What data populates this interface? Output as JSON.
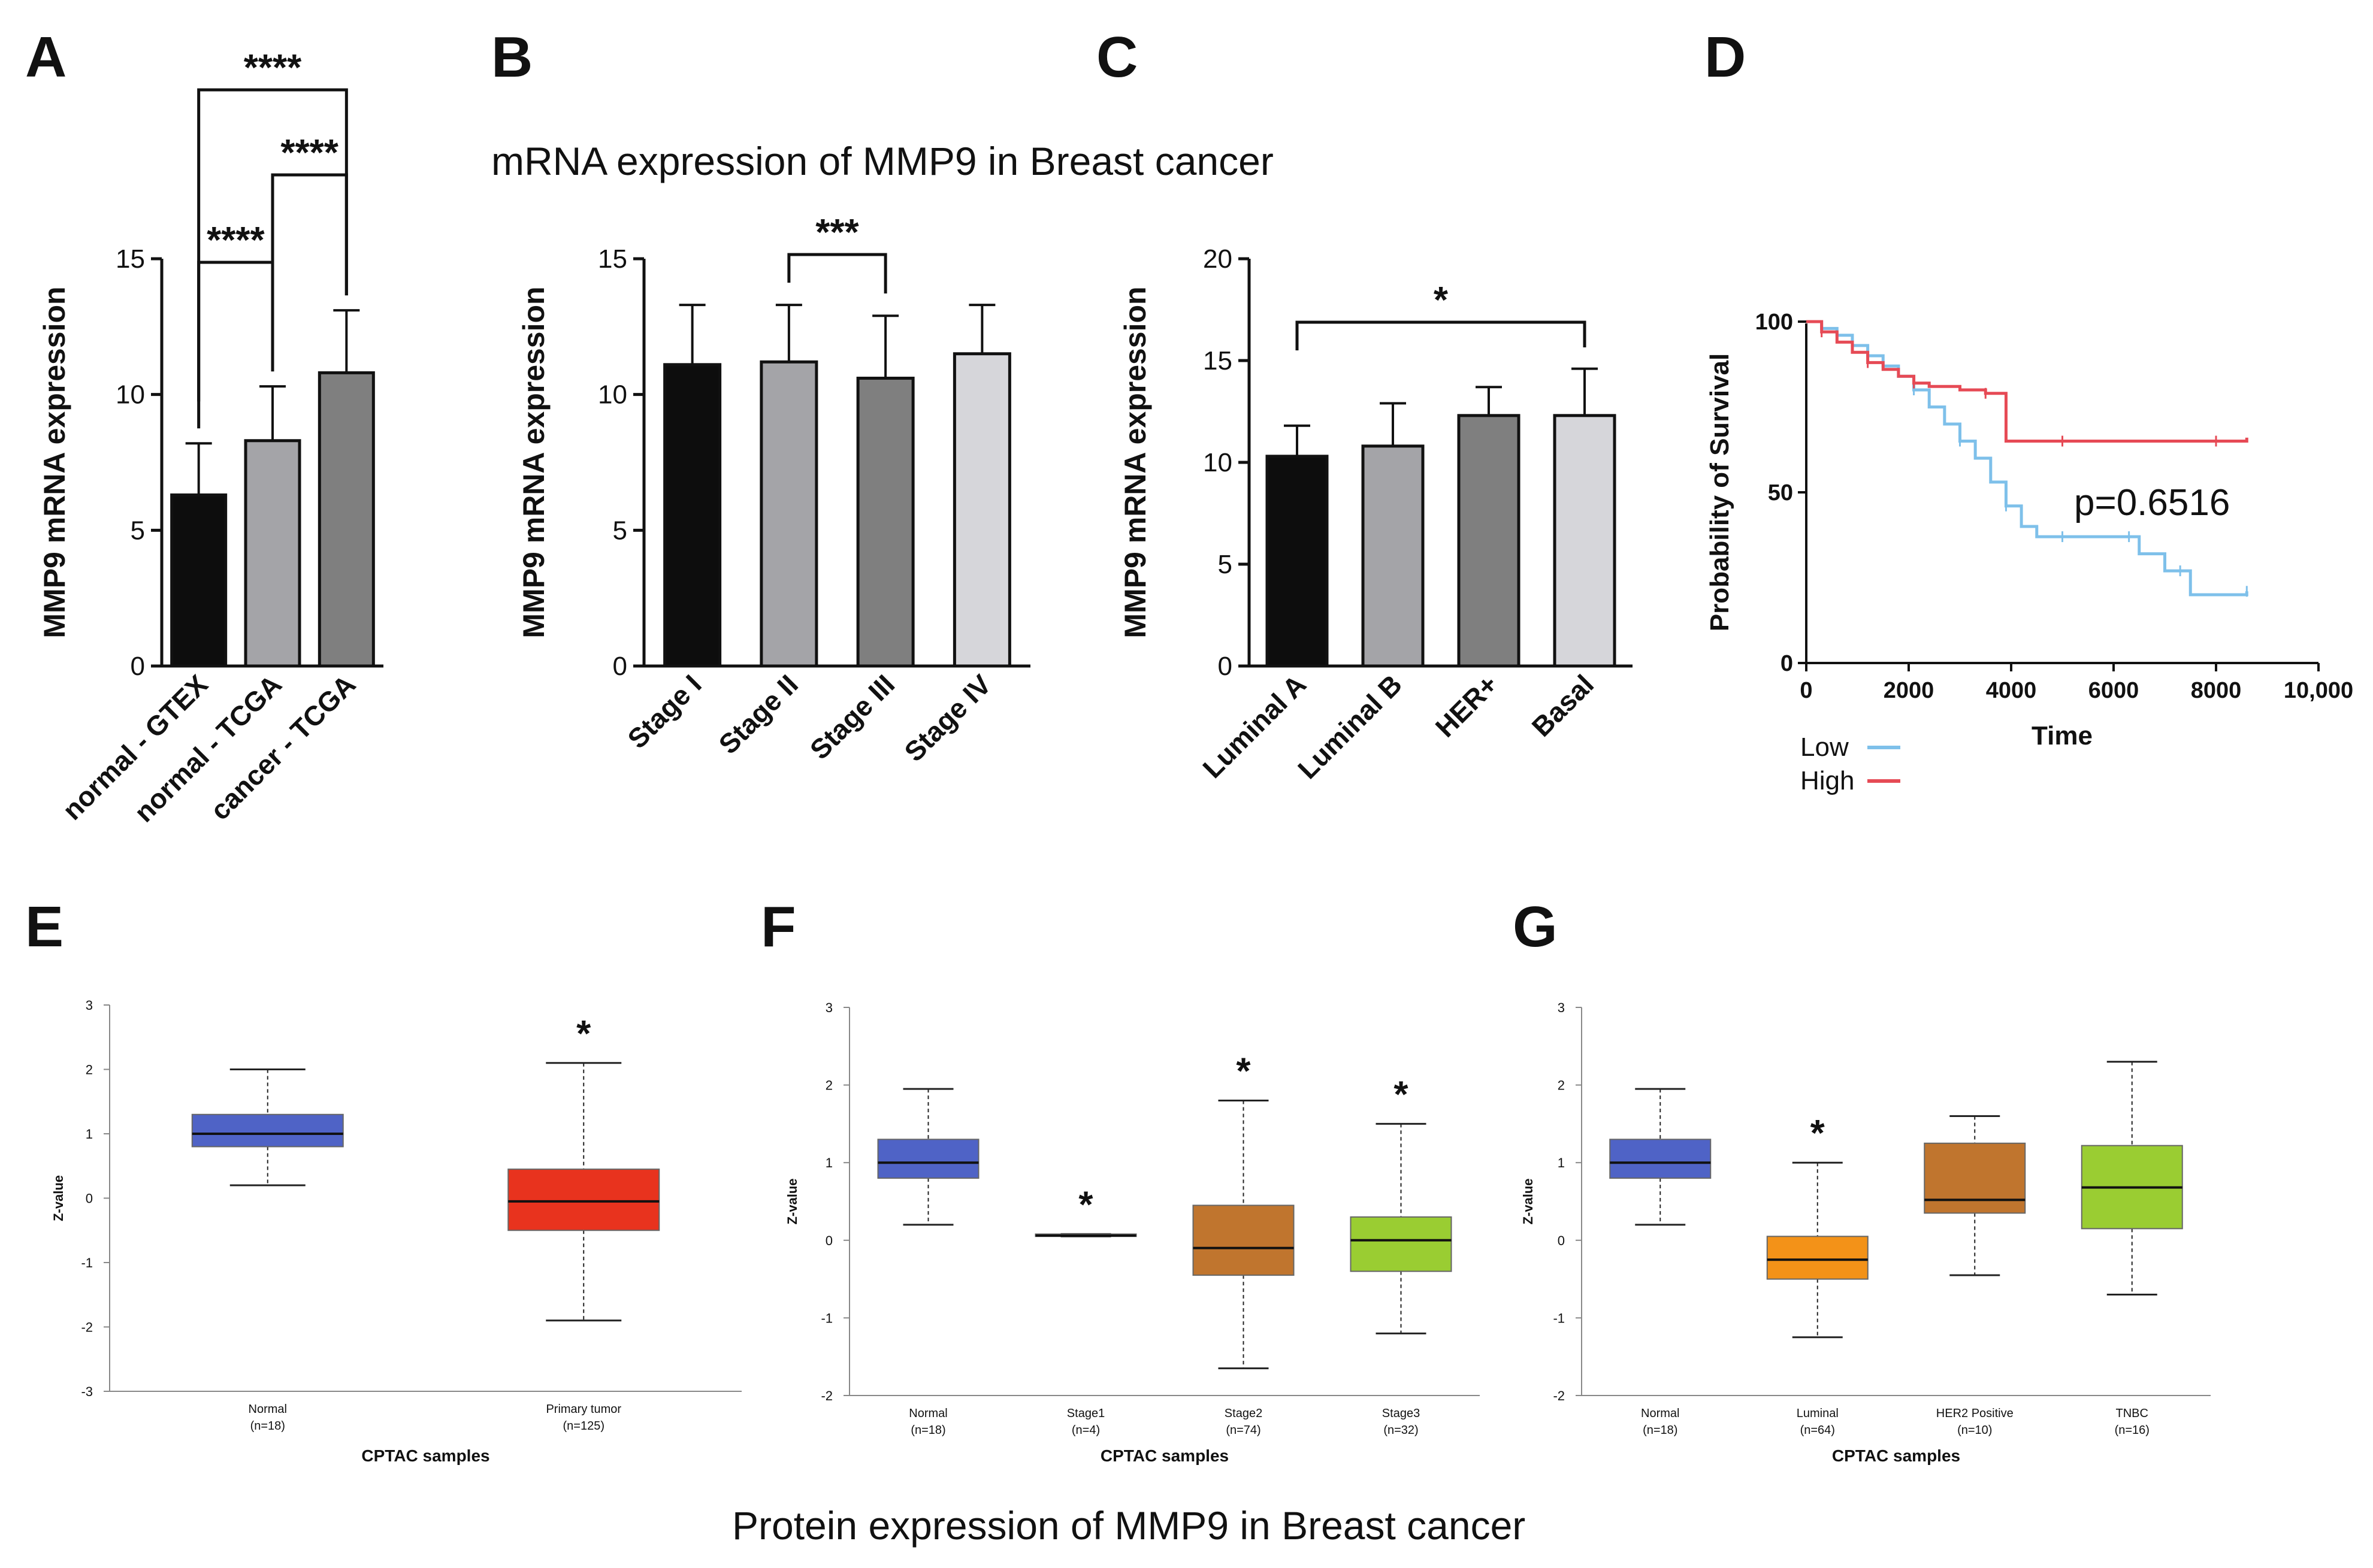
{
  "headings": {
    "mrna": "mRNA expression of MMP9 in Breast cancer",
    "protein": "Protein expression of MMP9 in Breast cancer"
  },
  "panel_letters": [
    "A",
    "B",
    "C",
    "D",
    "E",
    "F",
    "G"
  ],
  "colors": {
    "black": "#0d0d0d",
    "gray_mid": "#a4a4a8",
    "gray_dark": "#7f7f7f",
    "gray_light": "#d6d6da",
    "box_normal": "#4f63c6",
    "box_red": "#e8331e",
    "box_brown": "#c0752e",
    "box_orange": "#f39218",
    "box_green": "#9acd32",
    "km_low": "#7ec0ea",
    "km_high": "#e64a55"
  },
  "chart_data": [
    {
      "id": "A",
      "type": "bar",
      "title": "",
      "xlabel": "",
      "ylabel": "MMP9 mRNA expression",
      "ylim": [
        0,
        15
      ],
      "yticks": [
        0,
        5,
        10,
        15
      ],
      "categories": [
        "normal - GTEX",
        "normal - TCGA",
        "cancer - TCGA"
      ],
      "values": [
        6.3,
        8.3,
        10.8
      ],
      "errors": [
        1.9,
        2.0,
        2.3
      ],
      "bar_colors": [
        "#0d0d0d",
        "#a4a4a8",
        "#7f7f7f"
      ],
      "significance": [
        {
          "from": 0,
          "to": 2,
          "label": "****"
        },
        {
          "from": 1,
          "to": 2,
          "label": "****"
        },
        {
          "from": 0,
          "to": 1,
          "label": "****"
        }
      ]
    },
    {
      "id": "B",
      "type": "bar",
      "title": "",
      "xlabel": "",
      "ylabel": "MMP9 mRNA expression",
      "ylim": [
        0,
        15
      ],
      "yticks": [
        0,
        5,
        10,
        15
      ],
      "categories": [
        "Stage I",
        "Stage II",
        "Stage III",
        "Stage IV"
      ],
      "values": [
        11.1,
        11.2,
        10.6,
        11.5
      ],
      "errors": [
        2.2,
        2.1,
        2.3,
        1.8
      ],
      "bar_colors": [
        "#0d0d0d",
        "#a4a4a8",
        "#7f7f7f",
        "#d6d6da"
      ],
      "significance": [
        {
          "from": 1,
          "to": 2,
          "label": "***"
        }
      ]
    },
    {
      "id": "C",
      "type": "bar",
      "title": "",
      "xlabel": "",
      "ylabel": "MMP9 mRNA expression",
      "ylim": [
        0,
        20
      ],
      "yticks": [
        0,
        5,
        10,
        15,
        20
      ],
      "categories": [
        "Luminal A",
        "Luminal B",
        "HER+",
        "Basal"
      ],
      "values": [
        10.3,
        10.8,
        12.3,
        12.3
      ],
      "errors": [
        1.5,
        2.1,
        1.4,
        2.3
      ],
      "bar_colors": [
        "#0d0d0d",
        "#a4a4a8",
        "#7f7f7f",
        "#d6d6da"
      ],
      "significance": [
        {
          "from": 0,
          "to": 3,
          "label": "*"
        }
      ]
    },
    {
      "id": "D",
      "type": "line",
      "title": "",
      "xlabel": "Time",
      "ylabel": "Probability of Survival",
      "xlim": [
        0,
        10000
      ],
      "ylim": [
        0,
        100
      ],
      "xticks": [
        0,
        2000,
        4000,
        6000,
        8000,
        10000
      ],
      "xtick_labels": [
        "0",
        "2000",
        "4000",
        "6000",
        "8000",
        "10,000"
      ],
      "yticks": [
        0,
        50,
        100
      ],
      "annotation": "p=0.6516",
      "legend_position": "bottom-left",
      "series": [
        {
          "name": "Low",
          "color": "#7ec0ea",
          "x": [
            0,
            300,
            600,
            900,
            1200,
            1500,
            1800,
            2100,
            2400,
            2700,
            3000,
            3300,
            3600,
            3900,
            4200,
            4500,
            5000,
            5500,
            6000,
            6300,
            6500,
            7000,
            7300,
            7500,
            8000,
            8600
          ],
          "y": [
            100,
            98,
            96,
            93,
            90,
            87,
            84,
            80,
            75,
            70,
            65,
            60,
            53,
            46,
            40,
            37,
            37,
            37,
            37,
            37,
            32,
            27,
            27,
            20,
            20,
            21
          ]
        },
        {
          "name": "High",
          "color": "#e64a55",
          "x": [
            0,
            300,
            600,
            900,
            1200,
            1500,
            1800,
            2100,
            2400,
            3000,
            3500,
            3850,
            3900,
            5000,
            6000,
            7000,
            8000,
            8600
          ],
          "y": [
            100,
            97,
            94,
            91,
            88,
            86,
            84,
            82,
            81,
            80,
            79,
            79,
            65,
            65,
            65,
            65,
            65,
            66
          ]
        }
      ]
    },
    {
      "id": "E",
      "type": "box",
      "title": "",
      "xlabel": "CPTAC samples",
      "ylabel": "Z-value",
      "ylim": [
        -3,
        3
      ],
      "yticks": [
        -3,
        -2,
        -1,
        0,
        1,
        2,
        3
      ],
      "groups": [
        {
          "name": "Normal",
          "n": "(n=18)",
          "whisker_low": 0.2,
          "q1": 0.8,
          "median": 1.0,
          "q3": 1.3,
          "whisker_high": 2.0,
          "color": "#4f63c6",
          "sig": ""
        },
        {
          "name": "Primary tumor",
          "n": "(n=125)",
          "whisker_low": -1.9,
          "q1": -0.5,
          "median": -0.05,
          "q3": 0.45,
          "whisker_high": 2.1,
          "color": "#e8331e",
          "sig": "*"
        }
      ]
    },
    {
      "id": "F",
      "type": "box",
      "title": "",
      "xlabel": "CPTAC samples",
      "ylabel": "Z-value",
      "ylim": [
        -2,
        3
      ],
      "yticks": [
        -2,
        -1,
        0,
        1,
        2,
        3
      ],
      "groups": [
        {
          "name": "Normal",
          "n": "(n=18)",
          "whisker_low": 0.2,
          "q1": 0.8,
          "median": 1.0,
          "q3": 1.3,
          "whisker_high": 1.95,
          "color": "#4f63c6",
          "sig": ""
        },
        {
          "name": "Stage1",
          "n": "(n=4)",
          "whisker_low": 0.05,
          "q1": 0.05,
          "median": 0.06,
          "q3": 0.08,
          "whisker_high": 0.08,
          "color": "#c0752e",
          "sig": "*"
        },
        {
          "name": "Stage2",
          "n": "(n=74)",
          "whisker_low": -1.65,
          "q1": -0.45,
          "median": -0.1,
          "q3": 0.45,
          "whisker_high": 1.8,
          "color": "#c0752e",
          "sig": "*"
        },
        {
          "name": "Stage3",
          "n": "(n=32)",
          "whisker_low": -1.2,
          "q1": -0.4,
          "median": 0.0,
          "q3": 0.3,
          "whisker_high": 1.5,
          "color": "#9acd32",
          "sig": "*"
        }
      ]
    },
    {
      "id": "G",
      "type": "box",
      "title": "",
      "xlabel": "CPTAC samples",
      "ylabel": "Z-value",
      "ylim": [
        -2,
        3
      ],
      "yticks": [
        -2,
        -1,
        0,
        1,
        2,
        3
      ],
      "groups": [
        {
          "name": "Normal",
          "n": "(n=18)",
          "whisker_low": 0.2,
          "q1": 0.8,
          "median": 1.0,
          "q3": 1.3,
          "whisker_high": 1.95,
          "color": "#4f63c6",
          "sig": ""
        },
        {
          "name": "Luminal",
          "n": "(n=64)",
          "whisker_low": -1.25,
          "q1": -0.5,
          "median": -0.25,
          "q3": 0.05,
          "whisker_high": 1.0,
          "color": "#f39218",
          "sig": "*"
        },
        {
          "name": "HER2 Positive",
          "n": "(n=10)",
          "whisker_low": -0.45,
          "q1": 0.35,
          "median": 0.52,
          "q3": 1.25,
          "whisker_high": 1.6,
          "color": "#c0752e",
          "sig": ""
        },
        {
          "name": "TNBC",
          "n": "(n=16)",
          "whisker_low": -0.7,
          "q1": 0.15,
          "median": 0.68,
          "q3": 1.22,
          "whisker_high": 2.3,
          "color": "#9acd32",
          "sig": ""
        }
      ]
    }
  ]
}
